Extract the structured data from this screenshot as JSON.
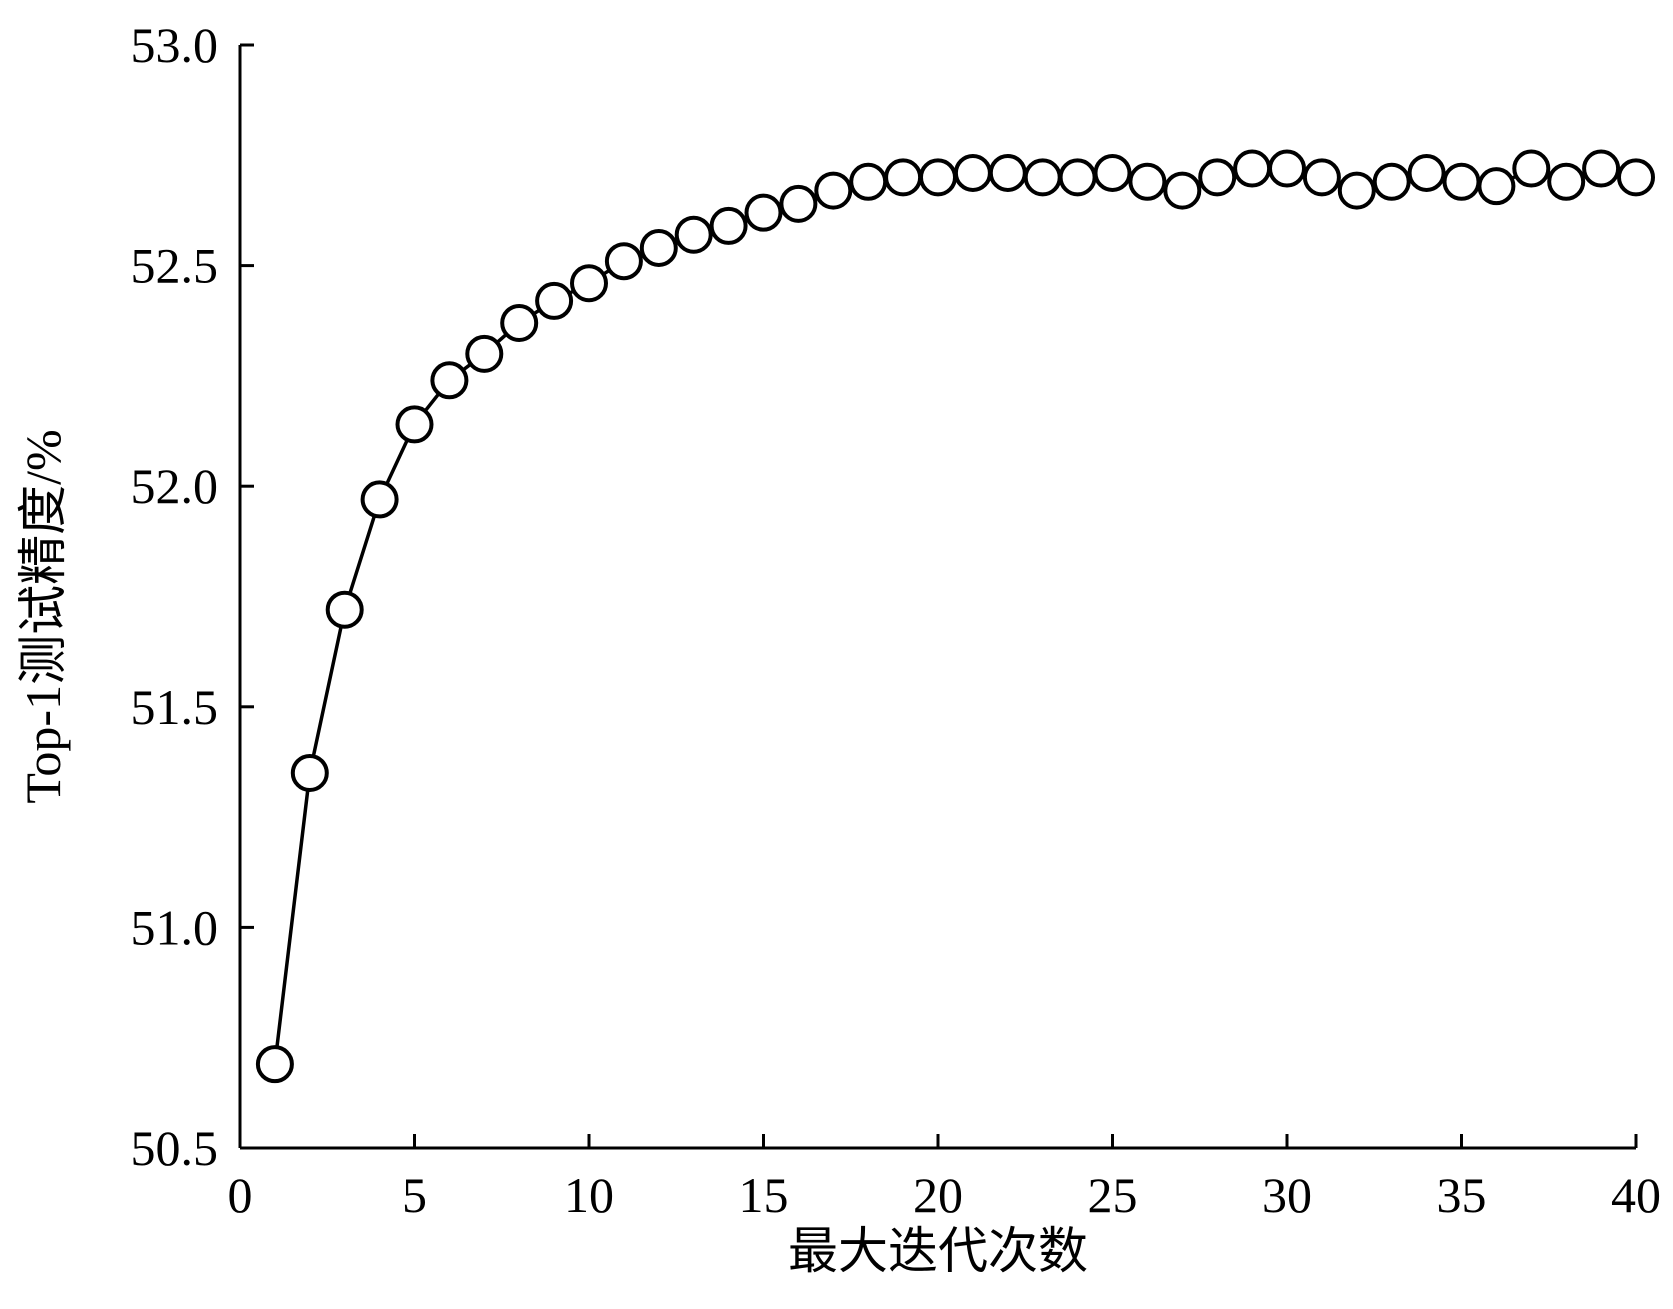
{
  "chart_data": {
    "type": "line",
    "title": "",
    "xlabel": "最大迭代次数",
    "ylabel": "Top-1测试精度/%",
    "xlim": [
      0,
      40
    ],
    "ylim": [
      50.5,
      53.0
    ],
    "xticks": [
      0,
      5,
      10,
      15,
      20,
      25,
      30,
      35,
      40
    ],
    "yticks": [
      50.5,
      51.0,
      51.5,
      52.0,
      52.5,
      53.0
    ],
    "xtick_labels": [
      "0",
      "5",
      "10",
      "15",
      "20",
      "25",
      "30",
      "35",
      "40"
    ],
    "ytick_labels": [
      "50.5",
      "51.0",
      "51.5",
      "52.0",
      "52.5",
      "53.0"
    ],
    "grid": false,
    "legend": "none",
    "marker": "open-circle",
    "line_color": "#000000",
    "series": [
      {
        "x": [
          1,
          2,
          3,
          4,
          5,
          6,
          7,
          8,
          9,
          10,
          11,
          12,
          13,
          14,
          15,
          16,
          17,
          18,
          19,
          20,
          21,
          22,
          23,
          24,
          25,
          26,
          27,
          28,
          29,
          30,
          31,
          32,
          33,
          34,
          35,
          36,
          37,
          38,
          39,
          40
        ],
        "y": [
          50.69,
          51.35,
          51.72,
          51.97,
          52.14,
          52.24,
          52.3,
          52.37,
          52.42,
          52.46,
          52.51,
          52.54,
          52.57,
          52.59,
          52.62,
          52.64,
          52.67,
          52.69,
          52.7,
          52.7,
          52.71,
          52.71,
          52.7,
          52.7,
          52.71,
          52.69,
          52.67,
          52.7,
          52.72,
          52.72,
          52.7,
          52.67,
          52.69,
          52.71,
          52.69,
          52.68,
          52.72,
          52.69,
          52.72,
          52.7
        ]
      }
    ]
  }
}
